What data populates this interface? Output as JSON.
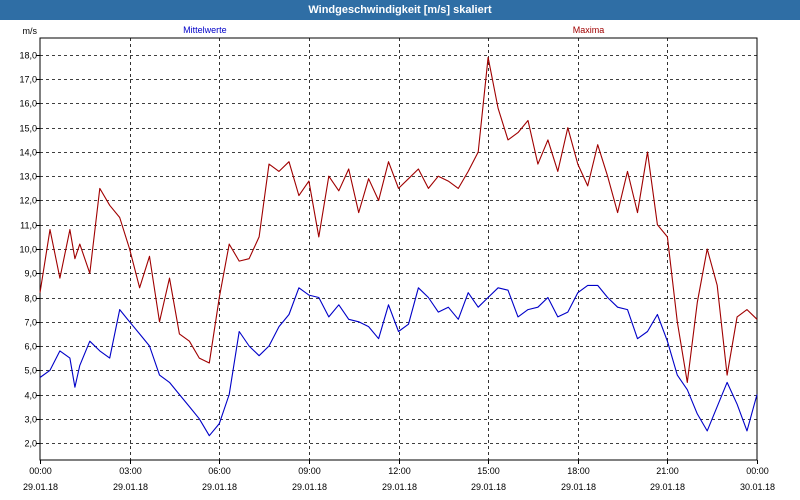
{
  "window": {
    "title": "Windgeschwindigkeit [m/s] skaliert"
  },
  "chart_data": {
    "type": "line",
    "title": "Windgeschwindigkeit [m/s] skaliert",
    "ylabel": "m/s",
    "ylim": [
      1.3,
      18.7
    ],
    "yticks": [
      "2,0",
      "3,0",
      "4,0",
      "5,0",
      "6,0",
      "7,0",
      "8,0",
      "9,0",
      "10,0",
      "11,0",
      "12,0",
      "13,0",
      "14,0",
      "15,0",
      "16,0",
      "17,0",
      "18,0"
    ],
    "xticks": [
      {
        "time": "00:00",
        "date": "29.01.18"
      },
      {
        "time": "03:00",
        "date": "29.01.18"
      },
      {
        "time": "06:00",
        "date": "29.01.18"
      },
      {
        "time": "09:00",
        "date": "29.01.18"
      },
      {
        "time": "12:00",
        "date": "29.01.18"
      },
      {
        "time": "15:00",
        "date": "29.01.18"
      },
      {
        "time": "18:00",
        "date": "29.01.18"
      },
      {
        "time": "21:00",
        "date": "29.01.18"
      },
      {
        "time": "00:00",
        "date": "30.01.18"
      }
    ],
    "grid": true,
    "series": [
      {
        "name": "Mittelwerte",
        "color": "#0000c8",
        "x": [
          "00:00",
          "00:20",
          "00:40",
          "01:00",
          "01:10",
          "01:20",
          "01:40",
          "02:00",
          "02:20",
          "02:40",
          "03:00",
          "03:20",
          "03:40",
          "04:00",
          "04:20",
          "04:40",
          "05:00",
          "05:20",
          "05:40",
          "06:00",
          "06:20",
          "06:40",
          "07:00",
          "07:20",
          "07:40",
          "08:00",
          "08:20",
          "08:40",
          "09:00",
          "09:20",
          "09:40",
          "10:00",
          "10:20",
          "10:40",
          "11:00",
          "11:20",
          "11:40",
          "12:00",
          "12:20",
          "12:40",
          "13:00",
          "13:20",
          "13:40",
          "14:00",
          "14:20",
          "14:40",
          "15:00",
          "15:20",
          "15:40",
          "16:00",
          "16:20",
          "16:40",
          "17:00",
          "17:20",
          "17:40",
          "18:00",
          "18:20",
          "18:40",
          "19:00",
          "19:20",
          "19:40",
          "20:00",
          "20:20",
          "20:40",
          "21:00",
          "21:20",
          "21:40",
          "22:00",
          "22:20",
          "22:40",
          "23:00",
          "23:20",
          "23:40",
          "24:00"
        ],
        "values": [
          4.7,
          5.0,
          5.8,
          5.5,
          4.3,
          5.2,
          6.2,
          5.8,
          5.5,
          7.5,
          7.0,
          6.5,
          6.0,
          4.8,
          4.5,
          4.0,
          3.5,
          3.0,
          2.3,
          2.8,
          4.0,
          6.6,
          6.0,
          5.6,
          6.0,
          6.8,
          7.3,
          8.4,
          8.1,
          8.0,
          7.2,
          7.7,
          7.1,
          7.0,
          6.8,
          6.3,
          7.7,
          6.6,
          6.9,
          8.4,
          8.0,
          7.4,
          7.6,
          7.1,
          8.2,
          7.6,
          8.0,
          8.4,
          8.3,
          7.2,
          7.5,
          7.6,
          8.0,
          7.2,
          7.4,
          8.2,
          8.5,
          8.5,
          8.0,
          7.6,
          7.5,
          6.3,
          6.6,
          7.3,
          6.2,
          4.8,
          4.2,
          3.2,
          2.5,
          3.5,
          4.5,
          3.6,
          2.5,
          4.0
        ]
      },
      {
        "name": "Maxima",
        "color": "#a00000",
        "x": [
          "00:00",
          "00:20",
          "00:40",
          "01:00",
          "01:10",
          "01:20",
          "01:40",
          "02:00",
          "02:20",
          "02:40",
          "03:00",
          "03:20",
          "03:40",
          "04:00",
          "04:20",
          "04:40",
          "05:00",
          "05:20",
          "05:40",
          "06:00",
          "06:20",
          "06:40",
          "07:00",
          "07:20",
          "07:40",
          "08:00",
          "08:20",
          "08:40",
          "09:00",
          "09:20",
          "09:40",
          "10:00",
          "10:20",
          "10:40",
          "11:00",
          "11:20",
          "11:40",
          "12:00",
          "12:20",
          "12:40",
          "13:00",
          "13:20",
          "13:40",
          "14:00",
          "14:20",
          "14:40",
          "15:00",
          "15:20",
          "15:40",
          "16:00",
          "16:20",
          "16:40",
          "17:00",
          "17:20",
          "17:40",
          "18:00",
          "18:20",
          "18:40",
          "19:00",
          "19:20",
          "19:40",
          "20:00",
          "20:20",
          "20:40",
          "21:00",
          "21:20",
          "21:40",
          "22:00",
          "22:20",
          "22:40",
          "23:00",
          "23:20",
          "23:40",
          "24:00"
        ],
        "values": [
          8.2,
          10.8,
          8.8,
          10.8,
          9.6,
          10.2,
          9.0,
          12.5,
          11.8,
          11.3,
          10.0,
          8.4,
          9.7,
          7.0,
          8.8,
          6.5,
          6.2,
          5.5,
          5.3,
          8.0,
          10.2,
          9.5,
          9.6,
          10.5,
          13.5,
          13.2,
          13.6,
          12.2,
          12.8,
          10.5,
          13.0,
          12.4,
          13.3,
          11.5,
          12.9,
          12.0,
          13.6,
          12.5,
          12.9,
          13.3,
          12.5,
          13.0,
          12.8,
          12.5,
          13.2,
          14.0,
          17.9,
          15.8,
          14.5,
          14.8,
          15.3,
          13.5,
          14.5,
          13.2,
          15.0,
          13.5,
          12.6,
          14.3,
          13.0,
          11.5,
          13.2,
          11.5,
          14.0,
          11.0,
          10.5,
          7.0,
          4.5,
          7.8,
          10.0,
          8.5,
          4.8,
          7.2,
          7.5,
          7.1
        ]
      }
    ]
  }
}
